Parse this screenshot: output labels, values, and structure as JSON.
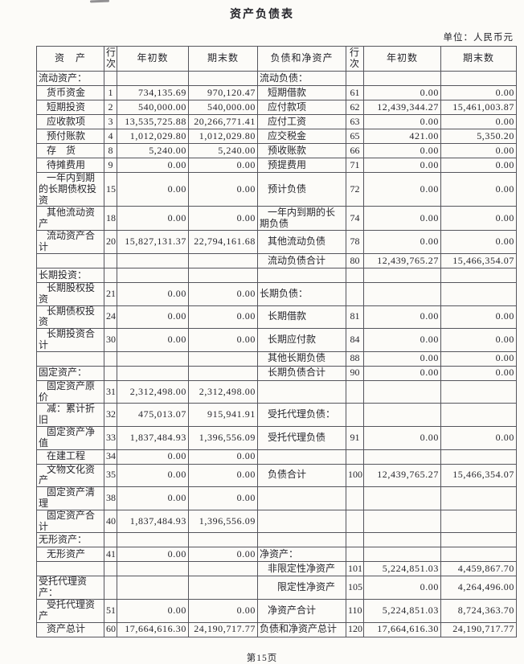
{
  "page": {
    "title": "资产负债表",
    "unit_note": "单位：人民币元",
    "page_number": "第15页"
  },
  "table": {
    "headers": {
      "asset": "资　产",
      "line_no": "行次",
      "begin": "年初数",
      "end": "期末数",
      "liability": "负债和净资产"
    },
    "rows": [
      {
        "tall": false,
        "l": {
          "label": "流动资产：",
          "indent": 0,
          "no": "",
          "v1": "",
          "v2": ""
        },
        "r": {
          "label": "流动负债：",
          "indent": 0,
          "no": "",
          "v1": "",
          "v2": ""
        }
      },
      {
        "tall": false,
        "l": {
          "label": "货币资金",
          "indent": 1,
          "no": "1",
          "v1": "734,135.69",
          "v2": "970,120.47"
        },
        "r": {
          "label": "短期借款",
          "indent": 1,
          "no": "61",
          "v1": "0.00",
          "v2": "0.00"
        }
      },
      {
        "tall": false,
        "l": {
          "label": "短期投资",
          "indent": 1,
          "no": "2",
          "v1": "540,000.00",
          "v2": "540,000.00"
        },
        "r": {
          "label": "应付款项",
          "indent": 1,
          "no": "62",
          "v1": "12,439,344.27",
          "v2": "15,461,003.87"
        }
      },
      {
        "tall": false,
        "l": {
          "label": "应收款项",
          "indent": 1,
          "no": "3",
          "v1": "13,535,725.88",
          "v2": "20,266,771.41"
        },
        "r": {
          "label": "应付工资",
          "indent": 1,
          "no": "63",
          "v1": "0.00",
          "v2": "0.00"
        }
      },
      {
        "tall": false,
        "l": {
          "label": "预付账款",
          "indent": 1,
          "no": "4",
          "v1": "1,012,029.80",
          "v2": "1,012,029.80"
        },
        "r": {
          "label": "应交税金",
          "indent": 1,
          "no": "65",
          "v1": "421.00",
          "v2": "5,350.20"
        }
      },
      {
        "tall": false,
        "l": {
          "label": "存　货",
          "indent": 1,
          "no": "8",
          "v1": "5,240.00",
          "v2": "5,240.00"
        },
        "r": {
          "label": "预收账款",
          "indent": 1,
          "no": "66",
          "v1": "0.00",
          "v2": "0.00"
        }
      },
      {
        "tall": false,
        "l": {
          "label": "待摊费用",
          "indent": 1,
          "no": "9",
          "v1": "0.00",
          "v2": "0.00"
        },
        "r": {
          "label": "预提费用",
          "indent": 1,
          "no": "71",
          "v1": "0.00",
          "v2": "0.00"
        }
      },
      {
        "tall": true,
        "l": {
          "label": "一年内到期的长期债权投资",
          "indent": 1,
          "no": "15",
          "v1": "0.00",
          "v2": "0.00"
        },
        "r": {
          "label": "预计负债",
          "indent": 1,
          "no": "72",
          "v1": "0.00",
          "v2": "0.00"
        }
      },
      {
        "tall": true,
        "l": {
          "label": "其他流动资产",
          "indent": 1,
          "no": "18",
          "v1": "0.00",
          "v2": "0.00"
        },
        "r": {
          "label": "一年内到期的长期负债",
          "indent": 1,
          "no": "74",
          "v1": "0.00",
          "v2": "0.00"
        }
      },
      {
        "tall": false,
        "l": {
          "label": "流动资产合计",
          "indent": 1,
          "no": "20",
          "v1": "15,827,131.37",
          "v2": "22,794,161.68"
        },
        "r": {
          "label": "其他流动负债",
          "indent": 1,
          "no": "78",
          "v1": "0.00",
          "v2": "0.00"
        }
      },
      {
        "tall": false,
        "l": {
          "label": "",
          "indent": 0,
          "no": "",
          "v1": "",
          "v2": ""
        },
        "r": {
          "label": "流动负债合计",
          "indent": 1,
          "no": "80",
          "v1": "12,439,765.27",
          "v2": "15,466,354.07"
        }
      },
      {
        "tall": false,
        "l": {
          "label": "长期投资：",
          "indent": 0,
          "no": "",
          "v1": "",
          "v2": ""
        },
        "r": {
          "label": "",
          "indent": 0,
          "no": "",
          "v1": "",
          "v2": ""
        }
      },
      {
        "tall": false,
        "l": {
          "label": "长期股权投资",
          "indent": 1,
          "no": "21",
          "v1": "0.00",
          "v2": "0.00"
        },
        "r": {
          "label": "长期负债：",
          "indent": 0,
          "no": "",
          "v1": "",
          "v2": ""
        }
      },
      {
        "tall": false,
        "l": {
          "label": "长期债权投资",
          "indent": 1,
          "no": "24",
          "v1": "0.00",
          "v2": "0.00"
        },
        "r": {
          "label": "长期借款",
          "indent": 1,
          "no": "81",
          "v1": "0.00",
          "v2": "0.00"
        }
      },
      {
        "tall": false,
        "l": {
          "label": "长期投资合计",
          "indent": 1,
          "no": "30",
          "v1": "0.00",
          "v2": "0.00"
        },
        "r": {
          "label": "长期应付款",
          "indent": 1,
          "no": "84",
          "v1": "0.00",
          "v2": "0.00"
        }
      },
      {
        "tall": false,
        "l": {
          "label": "",
          "indent": 0,
          "no": "",
          "v1": "",
          "v2": ""
        },
        "r": {
          "label": "其他长期负债",
          "indent": 1,
          "no": "88",
          "v1": "0.00",
          "v2": "0.00"
        }
      },
      {
        "tall": false,
        "l": {
          "label": "固定资产：",
          "indent": 0,
          "no": "",
          "v1": "",
          "v2": ""
        },
        "r": {
          "label": "长期负债合计",
          "indent": 1,
          "no": "90",
          "v1": "0.00",
          "v2": "0.00"
        }
      },
      {
        "tall": false,
        "l": {
          "label": "固定资产原价",
          "indent": 1,
          "no": "31",
          "v1": "2,312,498.00",
          "v2": "2,312,498.00"
        },
        "r": {
          "label": "",
          "indent": 0,
          "no": "",
          "v1": "",
          "v2": ""
        }
      },
      {
        "tall": false,
        "l": {
          "label": "减：累计折旧",
          "indent": 1,
          "no": "32",
          "v1": "475,013.07",
          "v2": "915,941.91"
        },
        "r": {
          "label": "受托代理负债：",
          "indent": 1,
          "no": "",
          "v1": "",
          "v2": ""
        }
      },
      {
        "tall": false,
        "l": {
          "label": "固定资产净值",
          "indent": 1,
          "no": "33",
          "v1": "1,837,484.93",
          "v2": "1,396,556.09"
        },
        "r": {
          "label": "受托代理负债",
          "indent": 1,
          "no": "91",
          "v1": "0.00",
          "v2": "0.00"
        }
      },
      {
        "tall": false,
        "l": {
          "label": "在建工程",
          "indent": 1,
          "no": "34",
          "v1": "0.00",
          "v2": "0.00"
        },
        "r": {
          "label": "",
          "indent": 0,
          "no": "",
          "v1": "",
          "v2": ""
        }
      },
      {
        "tall": false,
        "l": {
          "label": "文物文化资产",
          "indent": 1,
          "no": "35",
          "v1": "0.00",
          "v2": "0.00"
        },
        "r": {
          "label": "负债合计",
          "indent": 1,
          "no": "100",
          "v1": "12,439,765.27",
          "v2": "15,466,354.07"
        }
      },
      {
        "tall": false,
        "l": {
          "label": "固定资产清理",
          "indent": 1,
          "no": "38",
          "v1": "0.00",
          "v2": "0.00"
        },
        "r": {
          "label": "",
          "indent": 0,
          "no": "",
          "v1": "",
          "v2": ""
        }
      },
      {
        "tall": false,
        "l": {
          "label": "固定资产合计",
          "indent": 1,
          "no": "40",
          "v1": "1,837,484.93",
          "v2": "1,396,556.09"
        },
        "r": {
          "label": "",
          "indent": 0,
          "no": "",
          "v1": "",
          "v2": ""
        }
      },
      {
        "tall": false,
        "l": {
          "label": "无形资产：",
          "indent": 0,
          "no": "",
          "v1": "",
          "v2": ""
        },
        "r": {
          "label": "",
          "indent": 0,
          "no": "",
          "v1": "",
          "v2": ""
        }
      },
      {
        "tall": false,
        "l": {
          "label": "无形资产",
          "indent": 1,
          "no": "41",
          "v1": "0.00",
          "v2": "0.00"
        },
        "r": {
          "label": "净资产：",
          "indent": 0,
          "no": "",
          "v1": "",
          "v2": ""
        }
      },
      {
        "tall": false,
        "l": {
          "label": "",
          "indent": 0,
          "no": "",
          "v1": "",
          "v2": ""
        },
        "r": {
          "label": "非限定性净资产",
          "indent": 1,
          "no": "101",
          "v1": "5,224,851.03",
          "v2": "4,459,867.70"
        }
      },
      {
        "tall": false,
        "l": {
          "label": "受托代理资产：",
          "indent": 0,
          "no": "",
          "v1": "",
          "v2": ""
        },
        "r": {
          "label": "限定性净资产",
          "indent": 2,
          "no": "105",
          "v1": "0.00",
          "v2": "4,264,496.00"
        }
      },
      {
        "tall": false,
        "l": {
          "label": "受托代理资产",
          "indent": 1,
          "no": "51",
          "v1": "0.00",
          "v2": "0.00"
        },
        "r": {
          "label": "净资产合计",
          "indent": 1,
          "no": "110",
          "v1": "5,224,851.03",
          "v2": "8,724,363.70"
        }
      },
      {
        "tall": false,
        "l": {
          "label": "资产总计",
          "indent": 1,
          "no": "60",
          "v1": "17,664,616.30",
          "v2": "24,190,717.77"
        },
        "r": {
          "label": "负债和净资产总计",
          "indent": 0,
          "no": "120",
          "v1": "17,664,616.30",
          "v2": "24,190,717.77"
        }
      }
    ]
  },
  "colors": {
    "paper": "#fcfbf8",
    "ink": "#26262c",
    "border": "#55555c"
  }
}
